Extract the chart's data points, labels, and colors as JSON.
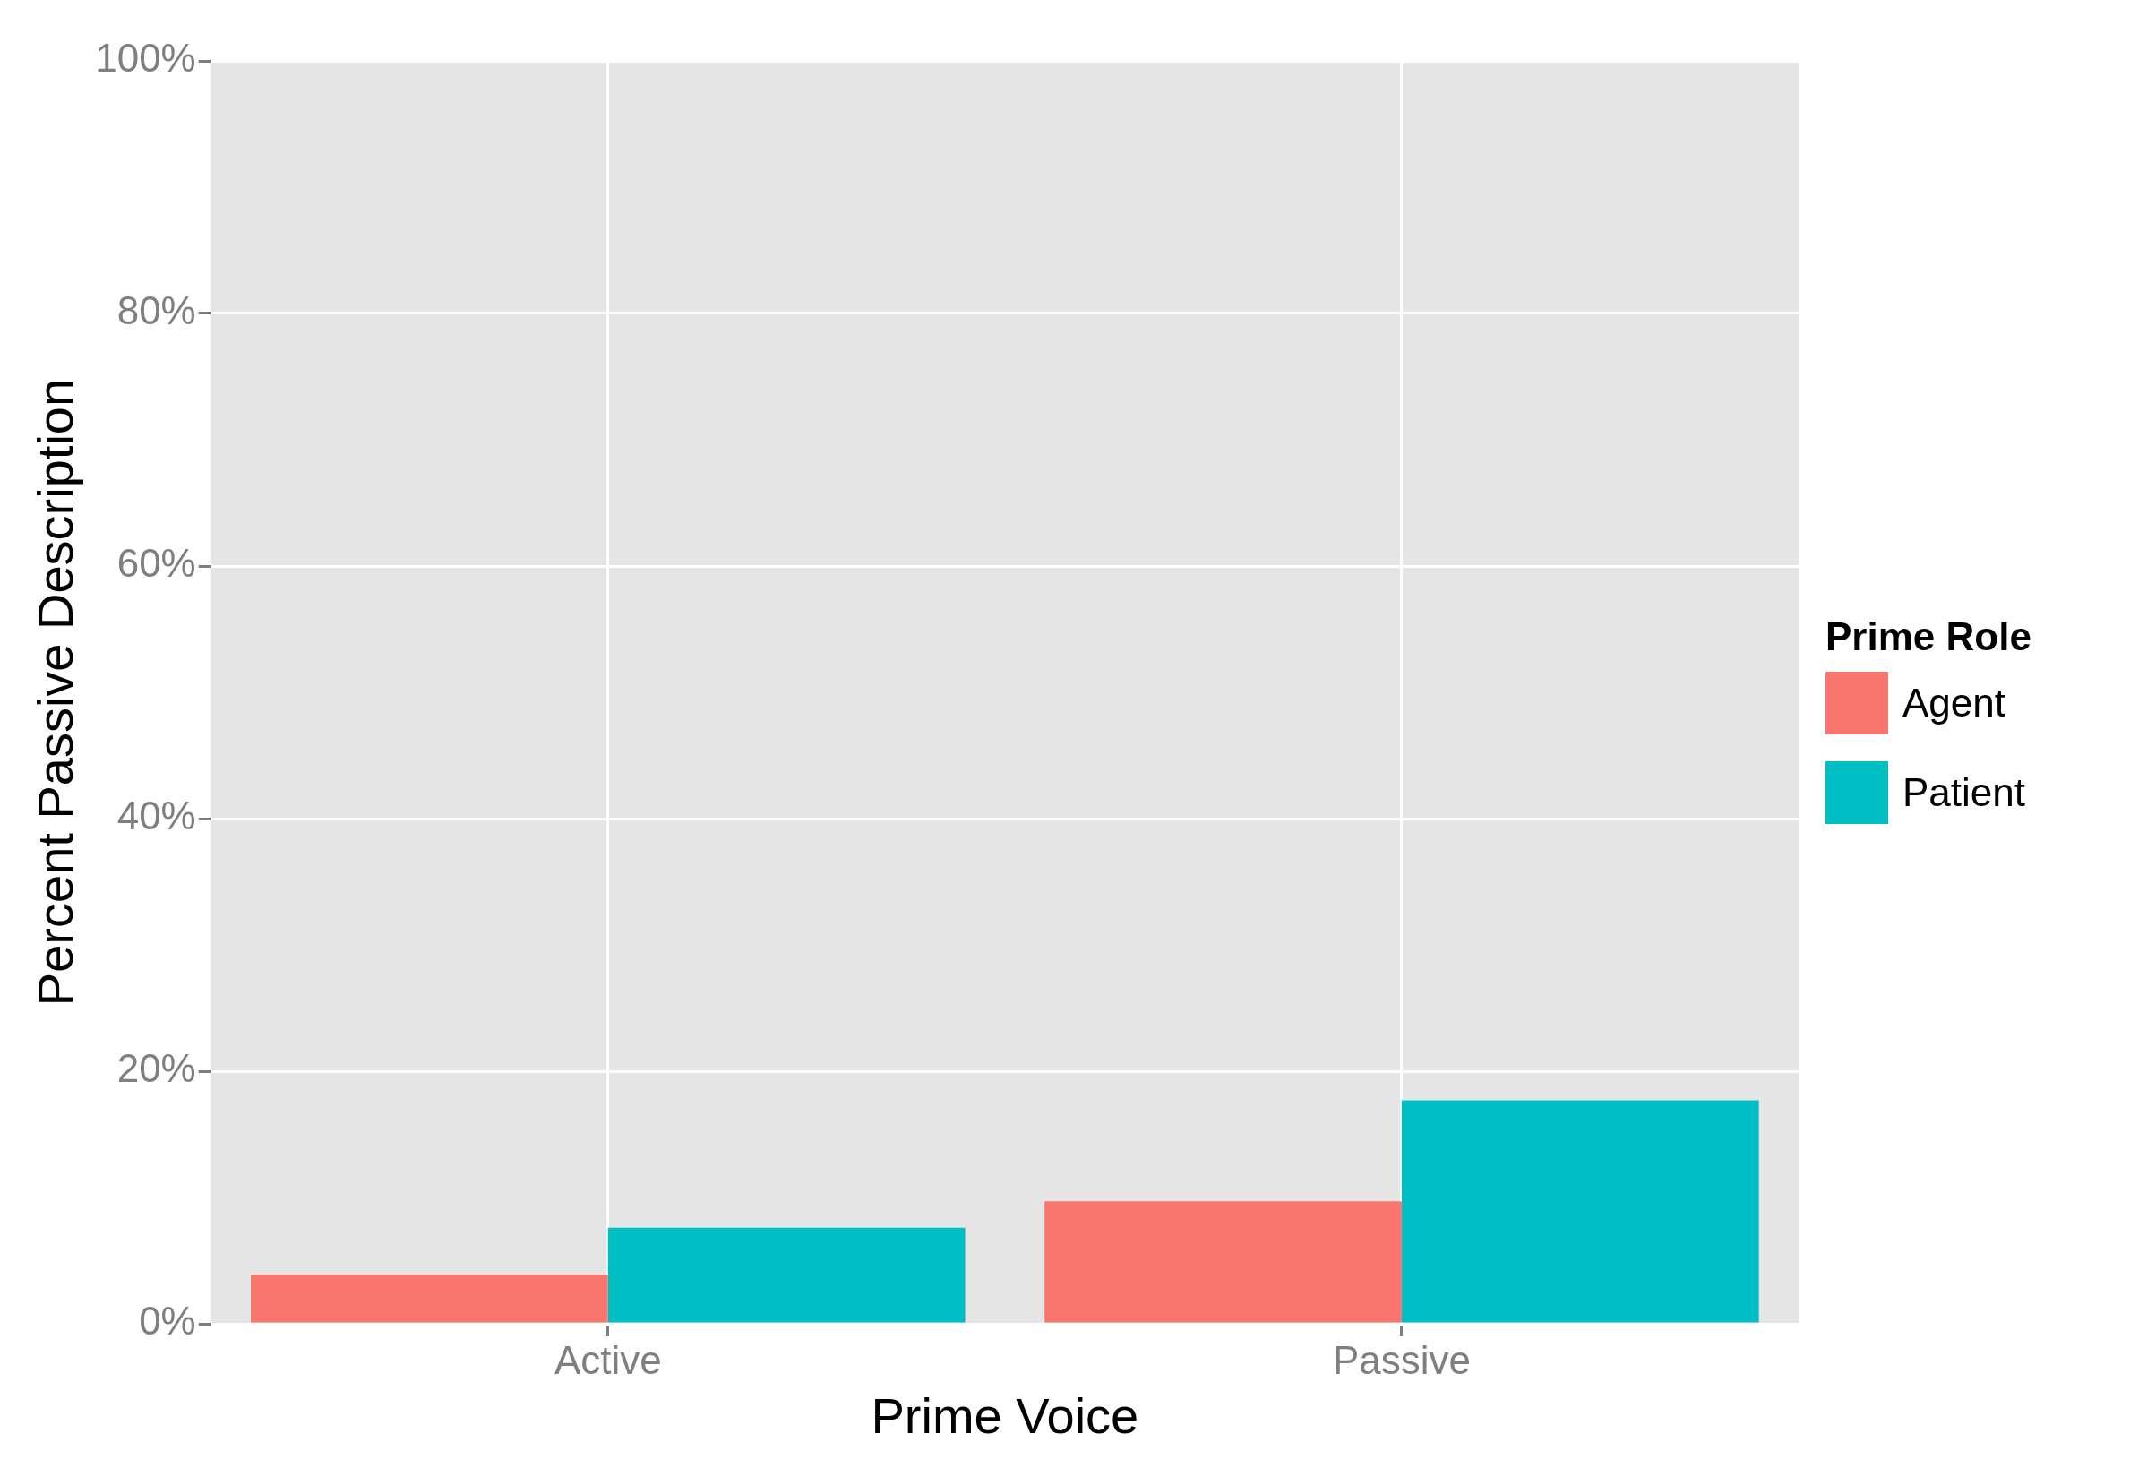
{
  "chart_data": {
    "type": "bar",
    "xlabel": "Prime Voice",
    "ylabel": "Percent Passive Description",
    "legend_title": "Prime Role",
    "categories": [
      "Active",
      "Passive"
    ],
    "series": [
      {
        "name": "Agent",
        "color": "#f8766d",
        "values": [
          3.9,
          9.7
        ]
      },
      {
        "name": "Patient",
        "color": "#00bfc4",
        "values": [
          7.6,
          17.7
        ]
      }
    ],
    "ylim": [
      0,
      100
    ],
    "yticks": [
      {
        "value": 0,
        "label": "0%"
      },
      {
        "value": 20,
        "label": "20%"
      },
      {
        "value": 40,
        "label": "40%"
      },
      {
        "value": 60,
        "label": "60%"
      },
      {
        "value": 80,
        "label": "80%"
      },
      {
        "value": 100,
        "label": "100%"
      }
    ],
    "grid": true,
    "legend": "right"
  }
}
